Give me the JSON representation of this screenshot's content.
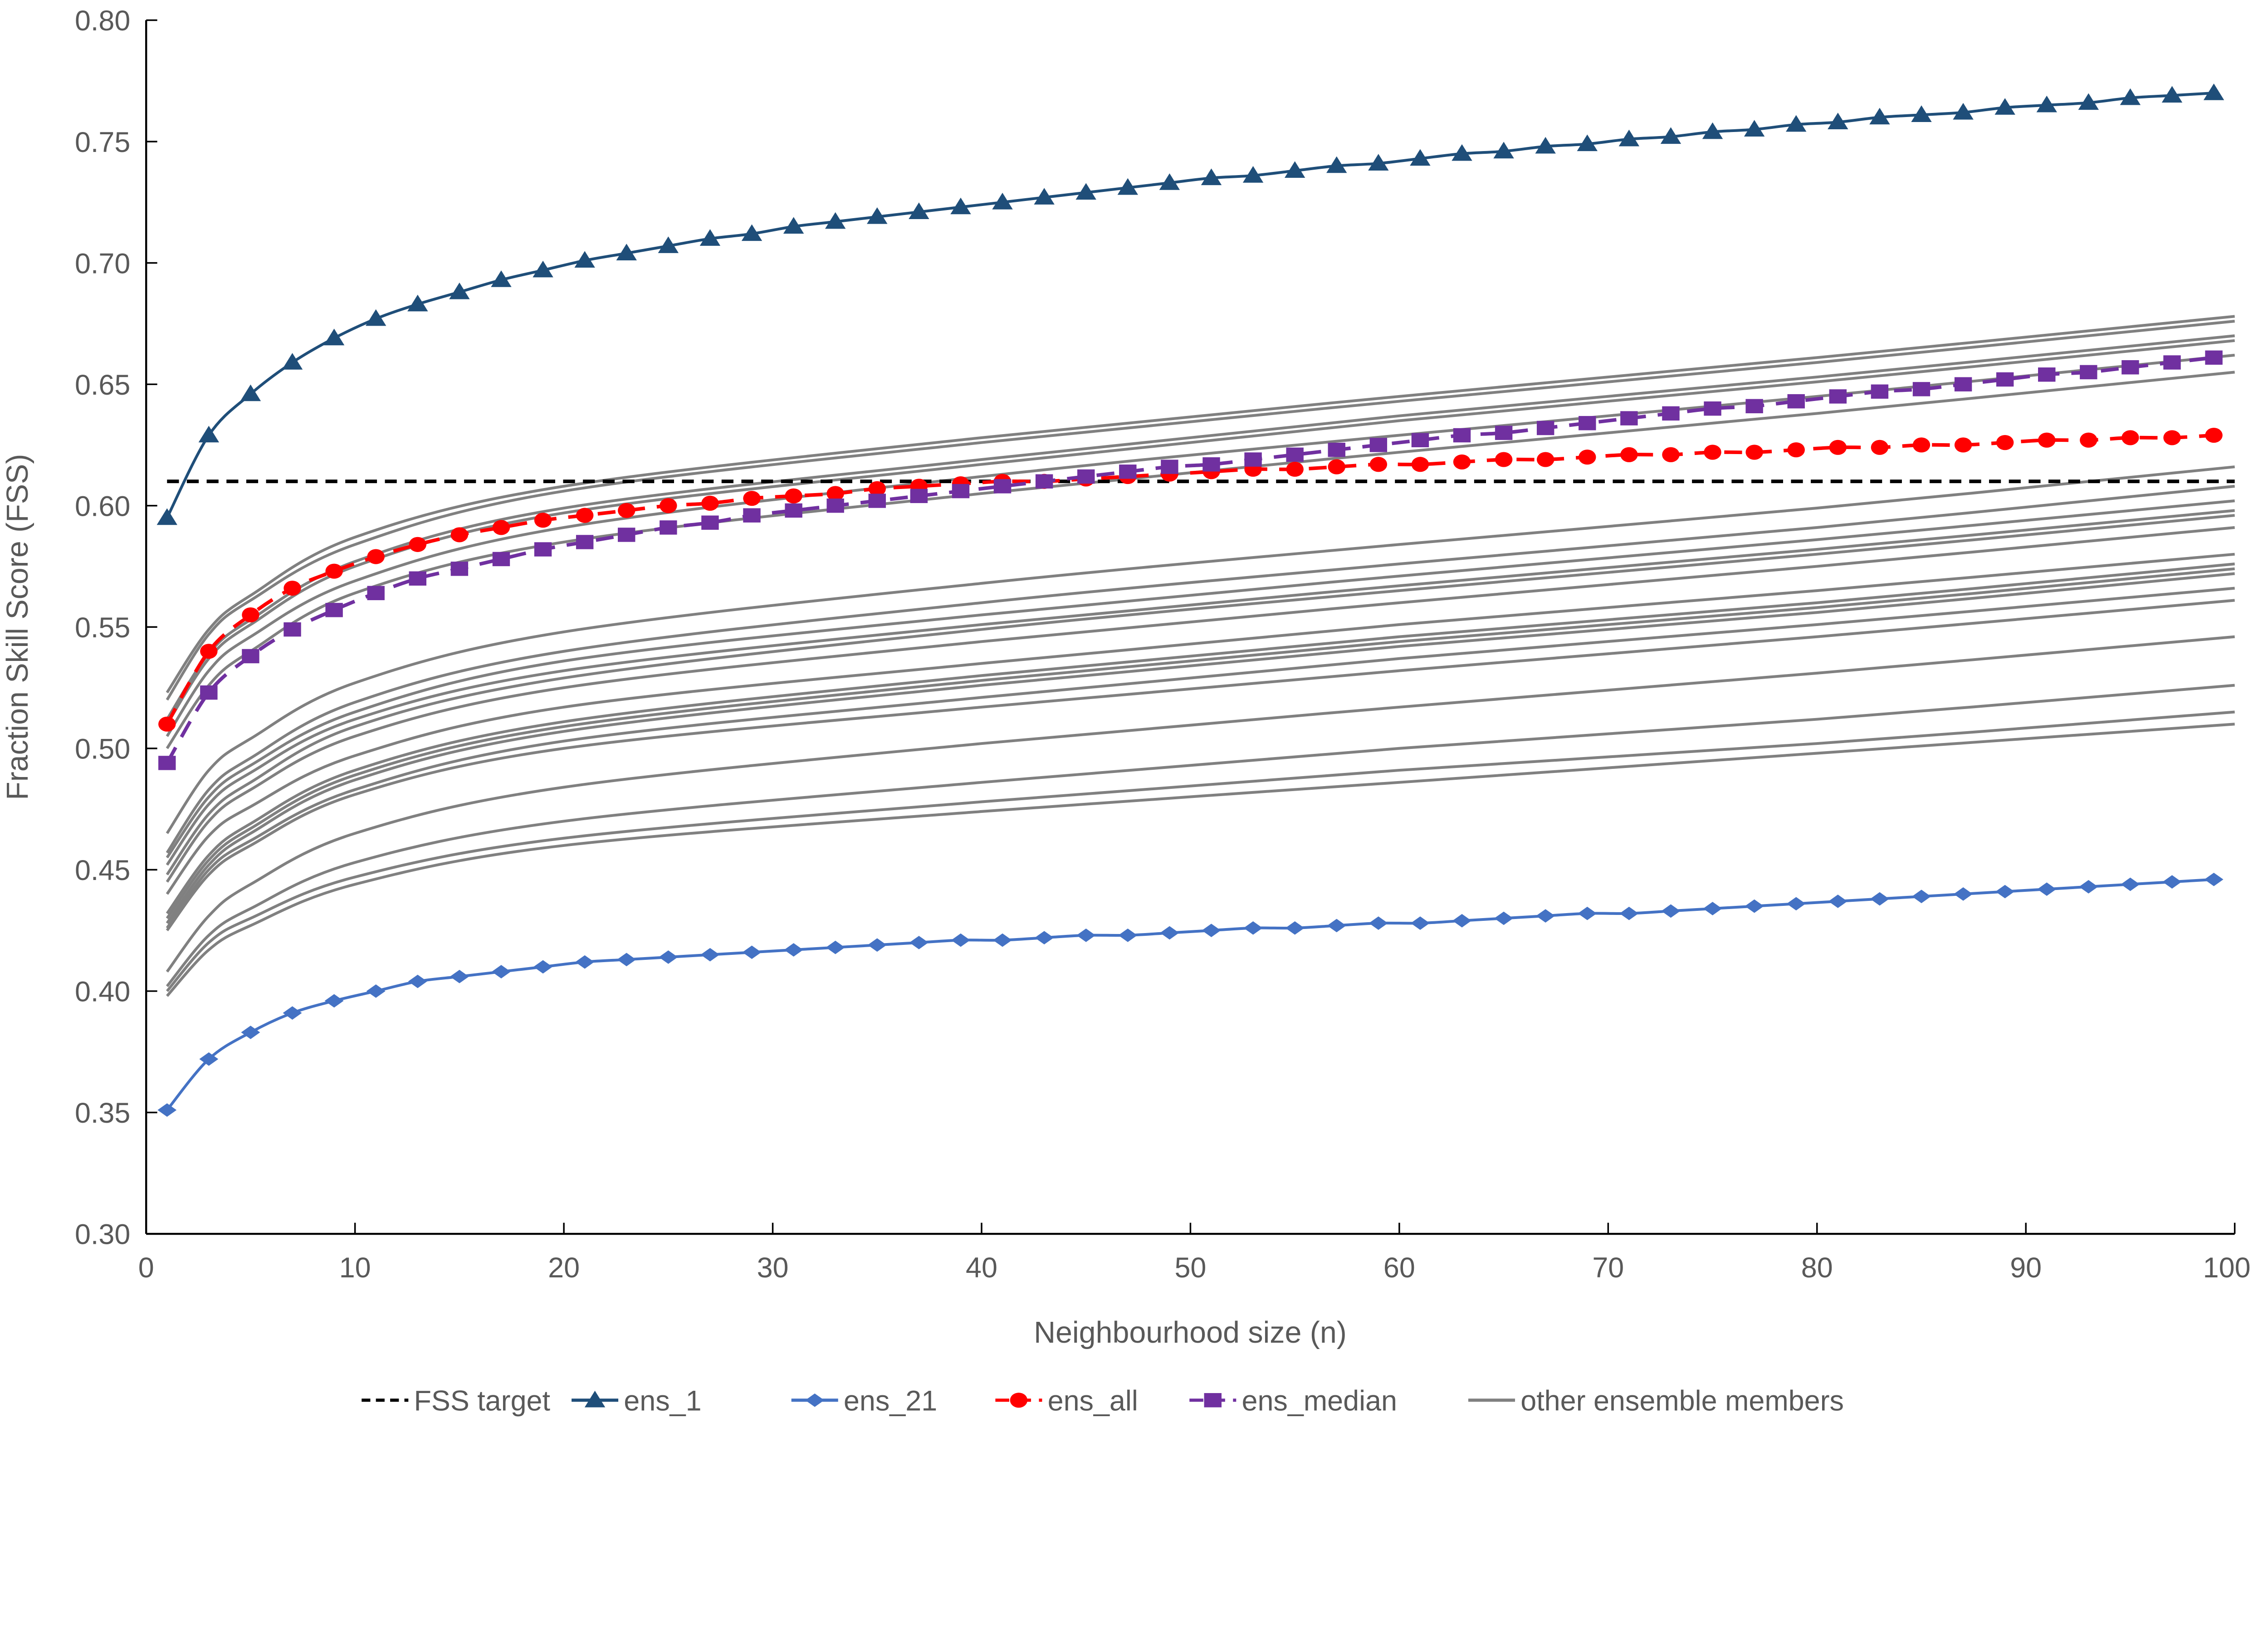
{
  "chart_data": {
    "type": "line",
    "title": "",
    "xlabel": "Neighbourhood size (n)",
    "ylabel": "Fraction Skill Score (FSS)",
    "xlim": [
      0,
      100
    ],
    "ylim": [
      0.3,
      0.8
    ],
    "xticks": [
      0,
      10,
      20,
      30,
      40,
      50,
      60,
      70,
      80,
      90,
      100
    ],
    "yticks": [
      "0.30",
      "0.35",
      "0.40",
      "0.45",
      "0.50",
      "0.55",
      "0.60",
      "0.65",
      "0.70",
      "0.75",
      "0.80"
    ],
    "grid": false,
    "legend_position": "bottom",
    "fss_target": {
      "name": "FSS target",
      "value": 0.61,
      "color": "#000000"
    },
    "marker_x": [
      1,
      3,
      5,
      7,
      9,
      11,
      13,
      15,
      17,
      19,
      21,
      23,
      25,
      27,
      29,
      31,
      33,
      35,
      37,
      39,
      41,
      43,
      45,
      47,
      49,
      51,
      53,
      55,
      57,
      59,
      61,
      63,
      65,
      67,
      69,
      71,
      73,
      75,
      77,
      79,
      81,
      83,
      85,
      87,
      89,
      91,
      93,
      95,
      97,
      99
    ],
    "series": [
      {
        "name": "ens_1",
        "color": "#1F4E79",
        "marker": "triangle",
        "dash": false,
        "values": [
          0.595,
          0.629,
          0.646,
          0.659,
          0.669,
          0.677,
          0.683,
          0.688,
          0.693,
          0.697,
          0.701,
          0.704,
          0.707,
          0.71,
          0.712,
          0.715,
          0.717,
          0.719,
          0.721,
          0.723,
          0.725,
          0.727,
          0.729,
          0.731,
          0.733,
          0.735,
          0.736,
          0.738,
          0.74,
          0.741,
          0.743,
          0.745,
          0.746,
          0.748,
          0.749,
          0.751,
          0.752,
          0.754,
          0.755,
          0.757,
          0.758,
          0.76,
          0.761,
          0.762,
          0.764,
          0.765,
          0.766,
          0.768,
          0.769,
          0.77
        ]
      },
      {
        "name": "ens_21",
        "color": "#4472C4",
        "marker": "diamond",
        "dash": false,
        "values": [
          0.351,
          0.372,
          0.383,
          0.391,
          0.396,
          0.4,
          0.404,
          0.406,
          0.408,
          0.41,
          0.412,
          0.413,
          0.414,
          0.415,
          0.416,
          0.417,
          0.418,
          0.419,
          0.42,
          0.421,
          0.421,
          0.422,
          0.423,
          0.423,
          0.424,
          0.425,
          0.426,
          0.426,
          0.427,
          0.428,
          0.428,
          0.429,
          0.43,
          0.431,
          0.432,
          0.432,
          0.433,
          0.434,
          0.435,
          0.436,
          0.437,
          0.438,
          0.439,
          0.44,
          0.441,
          0.442,
          0.443,
          0.444,
          0.445,
          0.446
        ]
      },
      {
        "name": "ens_all",
        "color": "#FF0000",
        "marker": "circle",
        "dash": true,
        "values": [
          0.51,
          0.54,
          0.555,
          0.566,
          0.573,
          0.579,
          0.584,
          0.588,
          0.591,
          0.594,
          0.596,
          0.598,
          0.6,
          0.601,
          0.603,
          0.604,
          0.605,
          0.607,
          0.608,
          0.609,
          0.61,
          0.61,
          0.611,
          0.612,
          0.613,
          0.614,
          0.615,
          0.615,
          0.616,
          0.617,
          0.617,
          0.618,
          0.619,
          0.619,
          0.62,
          0.621,
          0.621,
          0.622,
          0.622,
          0.623,
          0.624,
          0.624,
          0.625,
          0.625,
          0.626,
          0.627,
          0.627,
          0.628,
          0.628,
          0.629
        ]
      },
      {
        "name": "ens_median",
        "color": "#7030A0",
        "marker": "square",
        "dash": true,
        "values": [
          0.494,
          0.523,
          0.538,
          0.549,
          0.557,
          0.564,
          0.57,
          0.574,
          0.578,
          0.582,
          0.585,
          0.588,
          0.591,
          0.593,
          0.596,
          0.598,
          0.6,
          0.602,
          0.604,
          0.606,
          0.608,
          0.61,
          0.612,
          0.614,
          0.616,
          0.617,
          0.619,
          0.621,
          0.623,
          0.625,
          0.627,
          0.629,
          0.63,
          0.632,
          0.634,
          0.636,
          0.638,
          0.64,
          0.641,
          0.643,
          0.645,
          0.647,
          0.648,
          0.65,
          0.652,
          0.654,
          0.655,
          0.657,
          0.659,
          0.661
        ]
      }
    ],
    "others": {
      "name": "other ensemble members",
      "color": "#808080",
      "x": [
        1,
        3,
        5,
        10,
        20,
        40,
        60,
        80,
        100
      ],
      "members": [
        [
          0.523,
          0.549,
          0.563,
          0.587,
          0.608,
          0.628,
          0.645,
          0.661,
          0.678
        ],
        [
          0.52,
          0.547,
          0.561,
          0.584,
          0.606,
          0.626,
          0.643,
          0.659,
          0.676
        ],
        [
          0.512,
          0.539,
          0.553,
          0.577,
          0.599,
          0.619,
          0.637,
          0.653,
          0.67
        ],
        [
          0.51,
          0.537,
          0.551,
          0.575,
          0.597,
          0.617,
          0.635,
          0.651,
          0.668
        ],
        [
          0.505,
          0.532,
          0.546,
          0.569,
          0.591,
          0.612,
          0.629,
          0.645,
          0.662
        ],
        [
          0.5,
          0.526,
          0.54,
          0.564,
          0.585,
          0.605,
          0.622,
          0.638,
          0.655
        ],
        [
          0.465,
          0.491,
          0.504,
          0.527,
          0.548,
          0.568,
          0.584,
          0.599,
          0.616
        ],
        [
          0.457,
          0.483,
          0.496,
          0.519,
          0.54,
          0.56,
          0.576,
          0.591,
          0.608
        ],
        [
          0.455,
          0.48,
          0.493,
          0.515,
          0.536,
          0.555,
          0.571,
          0.586,
          0.602
        ],
        [
          0.452,
          0.477,
          0.49,
          0.512,
          0.532,
          0.551,
          0.567,
          0.582,
          0.598
        ],
        [
          0.448,
          0.473,
          0.486,
          0.509,
          0.529,
          0.549,
          0.565,
          0.58,
          0.596
        ],
        [
          0.445,
          0.47,
          0.483,
          0.505,
          0.525,
          0.544,
          0.56,
          0.575,
          0.591
        ],
        [
          0.44,
          0.464,
          0.476,
          0.497,
          0.517,
          0.535,
          0.551,
          0.565,
          0.58
        ],
        [
          0.432,
          0.456,
          0.469,
          0.491,
          0.511,
          0.53,
          0.546,
          0.56,
          0.576
        ],
        [
          0.43,
          0.454,
          0.467,
          0.489,
          0.509,
          0.528,
          0.544,
          0.558,
          0.574
        ],
        [
          0.428,
          0.452,
          0.465,
          0.487,
          0.507,
          0.526,
          0.542,
          0.556,
          0.572
        ],
        [
          0.426,
          0.45,
          0.462,
          0.483,
          0.503,
          0.521,
          0.537,
          0.551,
          0.566
        ],
        [
          0.425,
          0.448,
          0.46,
          0.481,
          0.5,
          0.517,
          0.532,
          0.546,
          0.561
        ],
        [
          0.408,
          0.431,
          0.444,
          0.465,
          0.484,
          0.502,
          0.517,
          0.531,
          0.546
        ],
        [
          0.402,
          0.423,
          0.434,
          0.453,
          0.47,
          0.486,
          0.5,
          0.512,
          0.526
        ],
        [
          0.4,
          0.42,
          0.43,
          0.447,
          0.463,
          0.478,
          0.491,
          0.502,
          0.515
        ],
        [
          0.398,
          0.417,
          0.427,
          0.444,
          0.46,
          0.474,
          0.486,
          0.498,
          0.51
        ]
      ]
    }
  }
}
